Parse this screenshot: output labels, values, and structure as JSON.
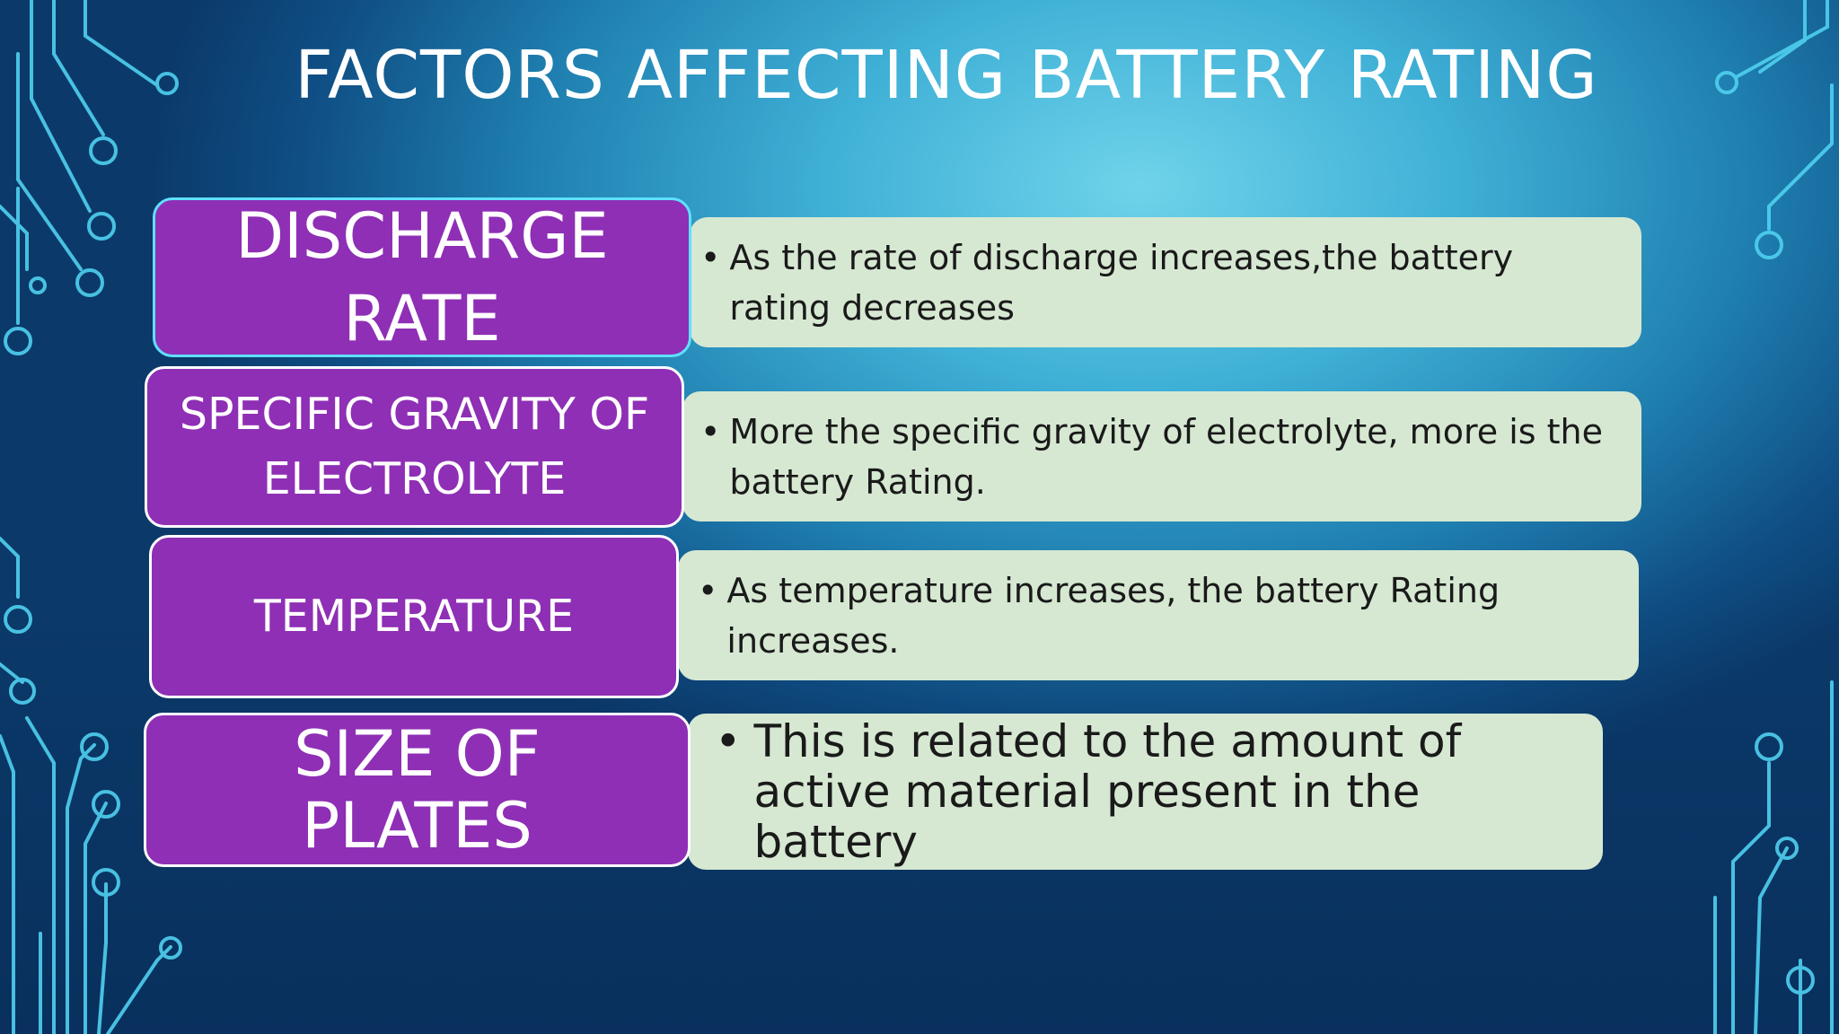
{
  "slide": {
    "title": "FACTORS AFFECTING BATTERY RATING",
    "bullet_glyph": "•",
    "colors": {
      "label_fill": "#8e2fb5",
      "description_fill": "#d6e8d2",
      "title_text": "#ffffff",
      "background_light": "#6fd3ea",
      "background_dark": "#0b3a6a",
      "circuit_lines": "#4fd0f0"
    },
    "factors": [
      {
        "label": "DISCHARGE RATE",
        "description": "As the rate of discharge increases,the battery rating decreases"
      },
      {
        "label": "SPECIFIC GRAVITY OF ELECTROLYTE",
        "description": "More the specific gravity of electrolyte, more is the battery Rating."
      },
      {
        "label": "TEMPERATURE",
        "description": "As temperature increases, the battery Rating increases."
      },
      {
        "label": "SIZE OF PLATES",
        "description": "This is related to the amount of active material present in the battery"
      }
    ]
  }
}
